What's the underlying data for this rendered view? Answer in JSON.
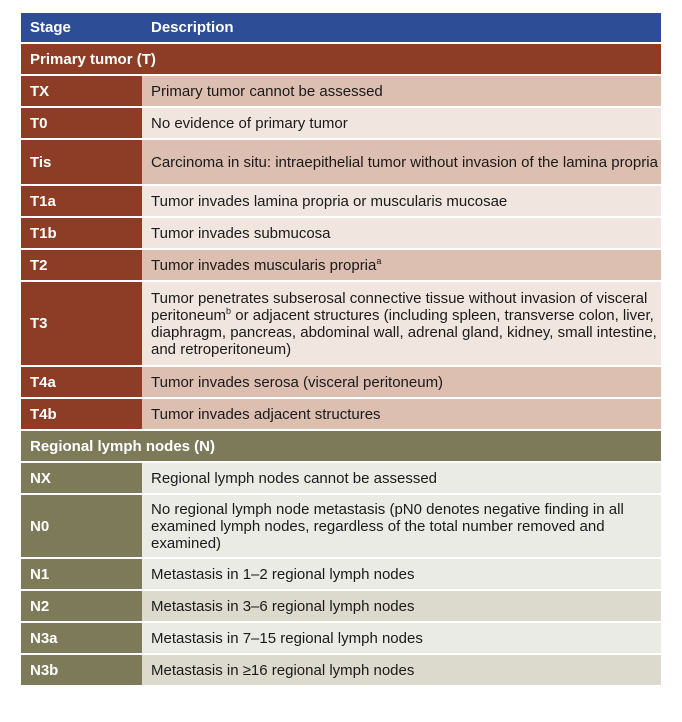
{
  "header": {
    "stage": "Stage",
    "description": "Description"
  },
  "sections": {
    "primary": "Primary tumor (T)",
    "regional": "Regional lymph nodes (N)"
  },
  "t_rows": [
    {
      "stage": "TX",
      "desc": "Primary tumor cannot be assessed"
    },
    {
      "stage": "T0",
      "desc": "No evidence of primary tumor"
    },
    {
      "stage": "Tis",
      "desc": "Carcinoma in situ: intraepithelial tumor without invasion of the lamina propria"
    },
    {
      "stage": "T1a",
      "desc": "Tumor invades lamina propria or muscularis mucosae"
    },
    {
      "stage": "T1b",
      "desc": "Tumor invades submucosa"
    },
    {
      "stage": "T2",
      "desc": "Tumor invades muscularis propria",
      "sup": "a"
    },
    {
      "stage": "T3",
      "desc_a": "Tumor penetrates subserosal connective tissue without invasion of visceral peritoneum",
      "sup": "b",
      "desc_b": " or adjacent structures (including spleen, transverse colon, liver, diaphragm, pancreas, abdominal wall, adrenal gland, kidney, small intestine, and retroperitoneum)"
    },
    {
      "stage": "T4a",
      "desc": "Tumor invades serosa (visceral peritoneum)"
    },
    {
      "stage": "T4b",
      "desc": "Tumor invades adjacent structures"
    }
  ],
  "n_rows": [
    {
      "stage": "NX",
      "desc": "Regional lymph nodes cannot be assessed"
    },
    {
      "stage": "N0",
      "desc": "No regional lymph node metastasis (pN0 denotes negative finding in all examined lymph nodes, regardless of the total number removed and examined)"
    },
    {
      "stage": "N1",
      "desc": "Metastasis in 1–2 regional lymph nodes"
    },
    {
      "stage": "N2",
      "desc": "Metastasis in 3–6 regional lymph nodes"
    },
    {
      "stage": "N3a",
      "desc": "Metastasis in 7–15 regional lymph nodes"
    },
    {
      "stage": "N3b",
      "desc": "Metastasis in ≥16 regional lymph nodes"
    }
  ]
}
